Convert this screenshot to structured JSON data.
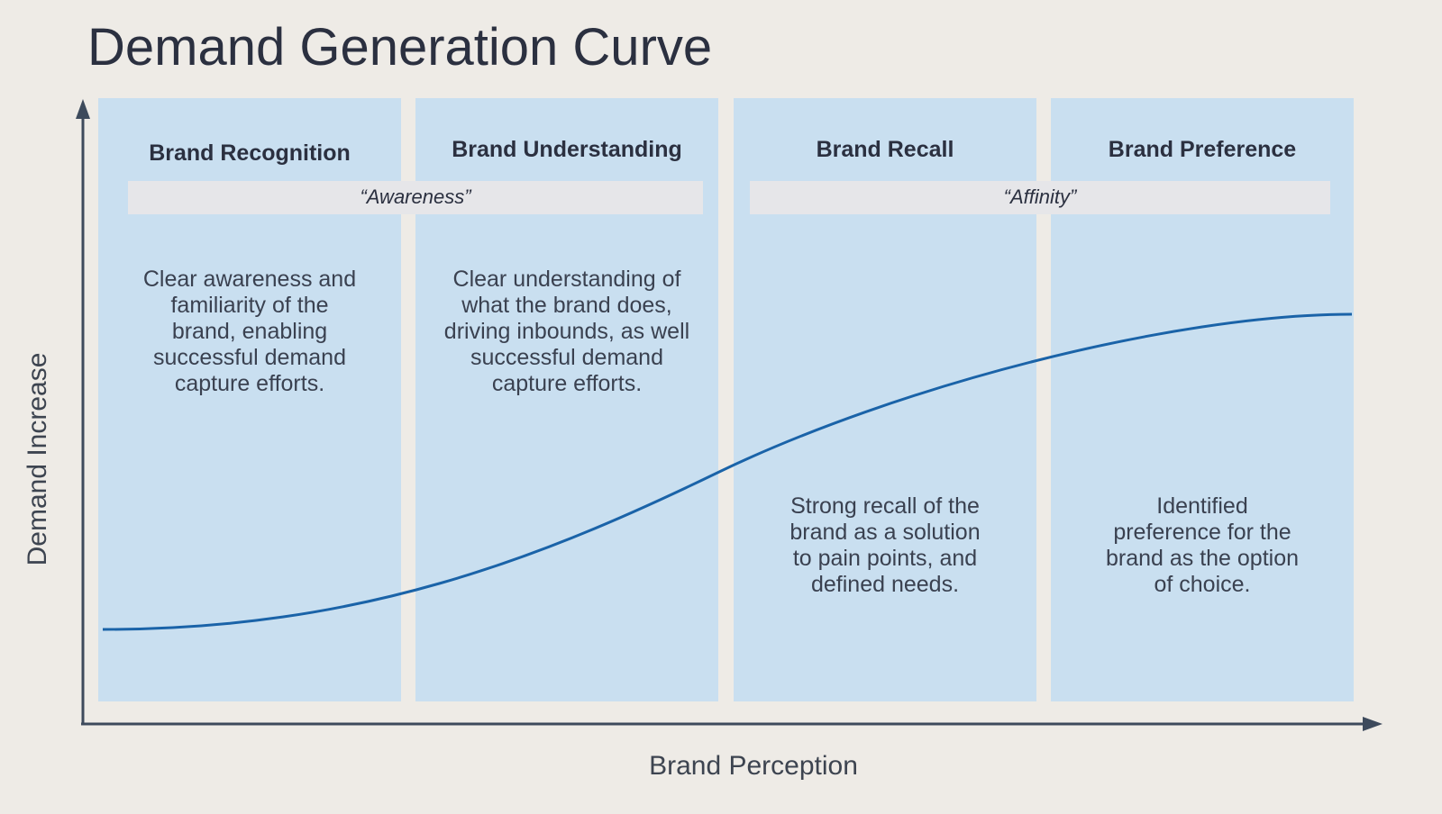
{
  "title": "Demand Generation Curve",
  "y_axis_label": "Demand Increase",
  "x_axis_label": "Brand Perception",
  "stages": [
    {
      "title": "Brand Recognition",
      "description": [
        "Clear awareness and",
        "familiarity of the",
        "brand, enabling",
        "successful demand",
        "capture efforts."
      ]
    },
    {
      "title": "Brand Understanding",
      "description": [
        "Clear understanding of",
        "what the brand does,",
        "driving inbounds, as well",
        "successful demand",
        "capture efforts."
      ]
    },
    {
      "title": "Brand Recall",
      "description": [
        "Strong recall of the",
        "brand as a solution",
        "to pain points, and",
        "defined needs."
      ]
    },
    {
      "title": "Brand Preference",
      "description": [
        "Identified",
        "preference for the",
        "brand as the option",
        "of choice."
      ]
    }
  ],
  "groups": [
    "“Awareness”",
    "“Affinity”"
  ]
}
